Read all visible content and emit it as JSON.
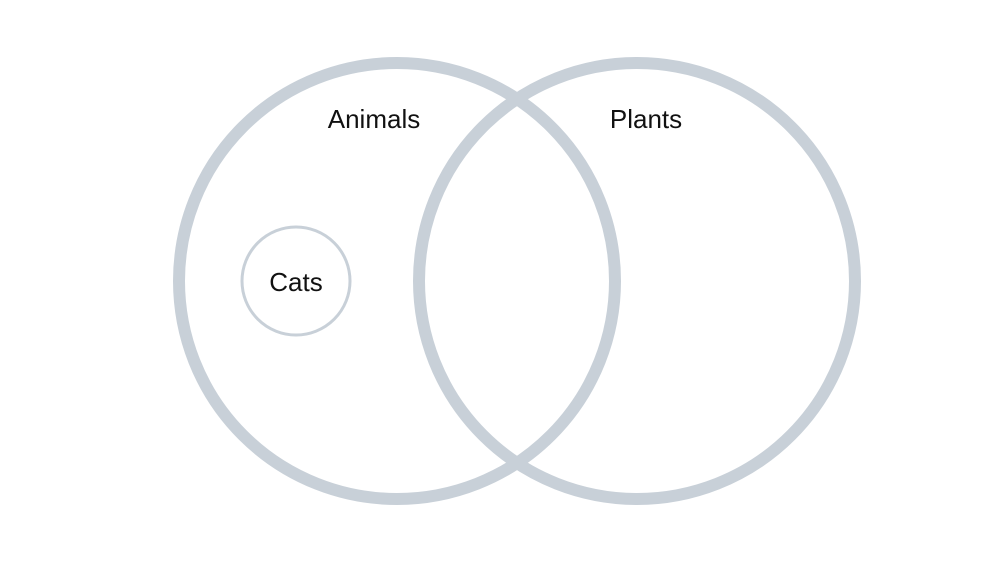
{
  "diagram": {
    "type": "venn",
    "outline_color": "#c8d0d8",
    "label_color": "#111111",
    "sets": [
      {
        "label": "Animals"
      },
      {
        "label": "Plants"
      }
    ],
    "subsets": [
      {
        "label": "Cats",
        "within": "Animals"
      }
    ]
  }
}
